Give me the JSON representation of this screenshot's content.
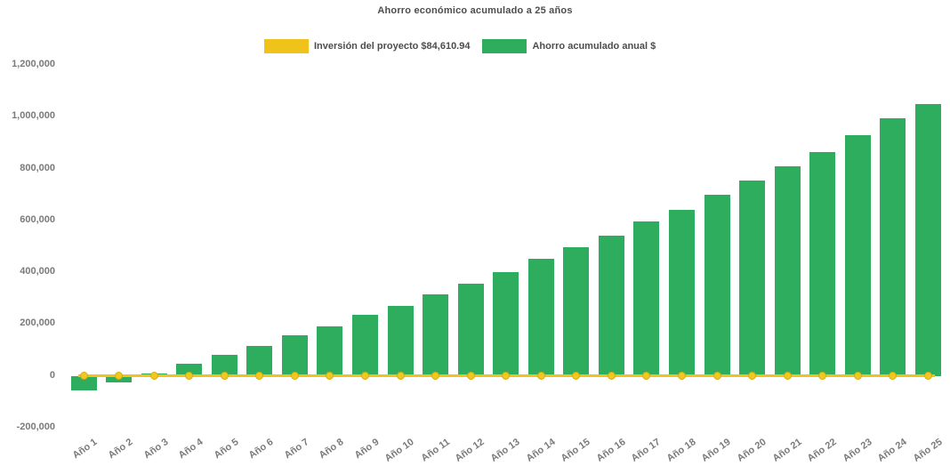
{
  "title": "Ahorro económico acumulado a 25 años",
  "legend": {
    "items": [
      {
        "label": "Inversión del proyecto $84,610.94",
        "color": "#EFC31A",
        "series_type": "line"
      },
      {
        "label": "Ahorro acumulado anual $",
        "color": "#2FAD5E",
        "series_type": "bar"
      }
    ]
  },
  "colors": {
    "background": "#FFFFFF",
    "bar_green": "#2FAD5E",
    "line_yellow": "#EFC31A",
    "marker_yellow": "#F2C71F",
    "marker_border": "#D9AC0E",
    "title_text": "#4D4D4D",
    "axis_text": "#7A7A7A"
  },
  "chart_data": {
    "type": "bar",
    "title": "Ahorro económico acumulado a 25 años",
    "xlabel": "",
    "ylabel": "",
    "categories": [
      "Año 1",
      "Año 2",
      "Año 3",
      "Año 4",
      "Año 5",
      "Año 6",
      "Año 7",
      "Año 8",
      "Año 9",
      "Año 10",
      "Año 11",
      "Año 12",
      "Año 13",
      "Año 14",
      "Año 15",
      "Año 16",
      "Año 17",
      "Año 18",
      "Año 19",
      "Año 20",
      "Año 21",
      "Año 22",
      "Año 23",
      "Año 24",
      "Año 25"
    ],
    "series": [
      {
        "name": "Ahorro acumulado anual $",
        "type": "bar",
        "color": "#2FAD5E",
        "values": [
          -55000,
          -25000,
          10000,
          45000,
          80000,
          115000,
          155000,
          190000,
          235000,
          270000,
          315000,
          355000,
          400000,
          450000,
          495000,
          540000,
          595000,
          640000,
          700000,
          755000,
          810000,
          865000,
          930000,
          995000,
          1050000
        ]
      },
      {
        "name": "Inversión del proyecto $84,610.94",
        "type": "line",
        "color": "#EFC31A",
        "marker": "circle",
        "amount_labeled": 84610.94,
        "values": [
          0,
          0,
          0,
          0,
          0,
          0,
          0,
          0,
          0,
          0,
          0,
          0,
          0,
          0,
          0,
          0,
          0,
          0,
          0,
          0,
          0,
          0,
          0,
          0,
          0
        ]
      }
    ],
    "y_axis": {
      "ticks": [
        {
          "value": -200000,
          "label": "-200,000"
        },
        {
          "value": 0,
          "label": "0"
        },
        {
          "value": 200000,
          "label": "200,000"
        },
        {
          "value": 400000,
          "label": "400,000"
        },
        {
          "value": 600000,
          "label": "600,000"
        },
        {
          "value": 800000,
          "label": "800,000"
        },
        {
          "value": 1000000,
          "label": "1,000,000"
        },
        {
          "value": 1200000,
          "label": "1,200,000"
        }
      ],
      "ylim": [
        -200000,
        1200000
      ]
    },
    "grid": false,
    "legend_position": "top"
  }
}
